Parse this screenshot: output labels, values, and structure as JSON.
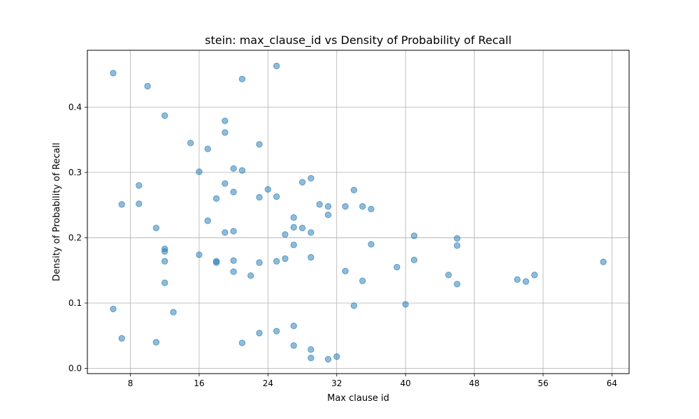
{
  "chart_data": {
    "type": "scatter",
    "title": "stein: max_clause_id vs Density of Probability of Recall",
    "xlabel": "Max clause id",
    "ylabel": "Density of Probability of Recall",
    "xlim": [
      3,
      66
    ],
    "ylim": [
      -0.008,
      0.487
    ],
    "xticks": [
      8,
      16,
      24,
      32,
      40,
      48,
      56,
      64
    ],
    "yticks": [
      0.0,
      0.1,
      0.2,
      0.3,
      0.4
    ],
    "ytick_labels": [
      "0.0",
      "0.1",
      "0.2",
      "0.3",
      "0.4"
    ],
    "grid": true,
    "point_color": "#1f77b4",
    "points": [
      [
        6,
        0.452
      ],
      [
        6,
        0.091
      ],
      [
        7,
        0.251
      ],
      [
        7,
        0.046
      ],
      [
        9,
        0.28
      ],
      [
        9,
        0.252
      ],
      [
        10,
        0.432
      ],
      [
        11,
        0.215
      ],
      [
        11,
        0.04
      ],
      [
        12,
        0.387
      ],
      [
        12,
        0.183
      ],
      [
        12,
        0.179
      ],
      [
        12,
        0.164
      ],
      [
        12,
        0.131
      ],
      [
        13,
        0.086
      ],
      [
        15,
        0.345
      ],
      [
        16,
        0.301
      ],
      [
        16,
        0.174
      ],
      [
        17,
        0.336
      ],
      [
        17,
        0.226
      ],
      [
        18,
        0.26
      ],
      [
        18,
        0.164
      ],
      [
        18,
        0.162
      ],
      [
        19,
        0.379
      ],
      [
        19,
        0.361
      ],
      [
        19,
        0.283
      ],
      [
        19,
        0.208
      ],
      [
        20,
        0.306
      ],
      [
        20,
        0.27
      ],
      [
        20,
        0.21
      ],
      [
        20,
        0.165
      ],
      [
        20,
        0.148
      ],
      [
        21,
        0.443
      ],
      [
        21,
        0.303
      ],
      [
        21,
        0.039
      ],
      [
        22,
        0.142
      ],
      [
        23,
        0.343
      ],
      [
        23,
        0.262
      ],
      [
        23,
        0.162
      ],
      [
        23,
        0.054
      ],
      [
        24,
        0.274
      ],
      [
        25,
        0.463
      ],
      [
        25,
        0.263
      ],
      [
        25,
        0.164
      ],
      [
        25,
        0.057
      ],
      [
        26,
        0.205
      ],
      [
        26,
        0.168
      ],
      [
        27,
        0.231
      ],
      [
        27,
        0.216
      ],
      [
        27,
        0.189
      ],
      [
        27,
        0.065
      ],
      [
        27,
        0.035
      ],
      [
        28,
        0.285
      ],
      [
        28,
        0.215
      ],
      [
        29,
        0.291
      ],
      [
        29,
        0.208
      ],
      [
        29,
        0.17
      ],
      [
        29,
        0.029
      ],
      [
        29,
        0.016
      ],
      [
        30,
        0.251
      ],
      [
        31,
        0.248
      ],
      [
        31,
        0.235
      ],
      [
        31,
        0.014
      ],
      [
        32,
        0.018
      ],
      [
        33,
        0.248
      ],
      [
        33,
        0.149
      ],
      [
        34,
        0.273
      ],
      [
        34,
        0.096
      ],
      [
        35,
        0.248
      ],
      [
        35,
        0.134
      ],
      [
        36,
        0.244
      ],
      [
        36,
        0.19
      ],
      [
        39,
        0.155
      ],
      [
        40,
        0.098
      ],
      [
        41,
        0.203
      ],
      [
        41,
        0.166
      ],
      [
        45,
        0.143
      ],
      [
        46,
        0.199
      ],
      [
        46,
        0.188
      ],
      [
        46,
        0.129
      ],
      [
        53,
        0.136
      ],
      [
        54,
        0.133
      ],
      [
        55,
        0.143
      ],
      [
        63,
        0.163
      ]
    ]
  }
}
